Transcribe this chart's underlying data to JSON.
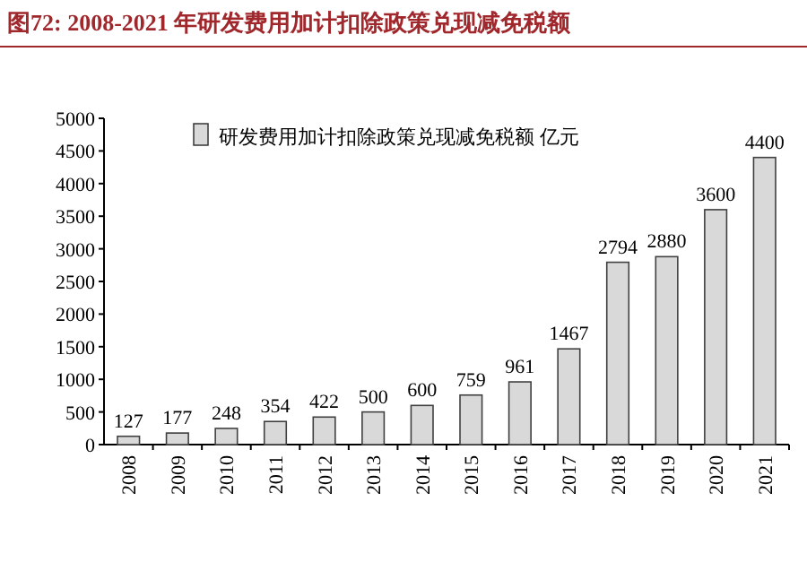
{
  "chart_data": {
    "type": "bar",
    "title": "图72:  2008-2021 年研发费用加计扣除政策兑现减免税额",
    "categories": [
      "2008",
      "2009",
      "2010",
      "2011",
      "2012",
      "2013",
      "2014",
      "2015",
      "2016",
      "2017",
      "2018",
      "2019",
      "2020",
      "2021"
    ],
    "series": [
      {
        "name": "研发费用加计扣除政策兑现减免税额 亿元",
        "color": "#d9d9d9",
        "values": [
          127,
          177,
          248,
          354,
          422,
          500,
          600,
          759,
          961,
          1467,
          2794,
          2880,
          3600,
          4400
        ]
      }
    ],
    "ylim": [
      0,
      5000
    ],
    "yticks": [
      0,
      500,
      1000,
      1500,
      2000,
      2500,
      3000,
      3500,
      4000,
      4500,
      5000
    ],
    "data_labels": true,
    "legend": "top",
    "grid": false
  }
}
